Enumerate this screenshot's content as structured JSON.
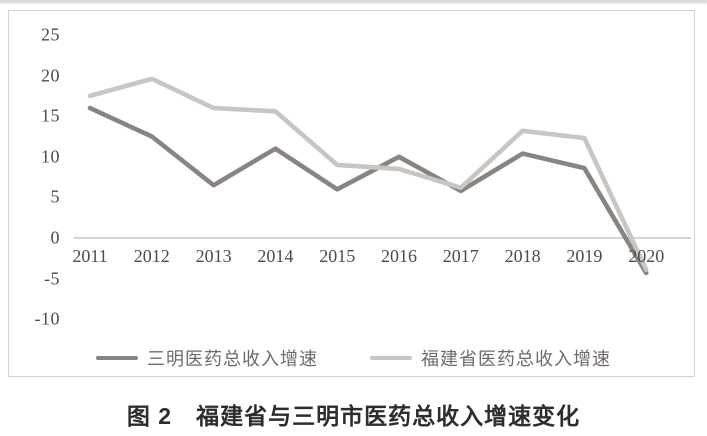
{
  "figure": {
    "caption": "图 2　福建省与三明市医药总收入增速变化"
  },
  "colors": {
    "sanming_line": "#8a8481",
    "fujian_line": "#c9c5c2",
    "axis_line": "#c9c5c2",
    "tick_text": "#4e4b49",
    "frame_border": "#d7d2ce"
  },
  "chart_data": {
    "type": "line",
    "x": [
      2011,
      2012,
      2013,
      2014,
      2015,
      2016,
      2017,
      2018,
      2019,
      2020
    ],
    "series": [
      {
        "name": "三明医药总收入增速",
        "color": "#8a8481",
        "values": [
          16,
          12.5,
          6.5,
          11,
          6,
          10,
          5.8,
          10.4,
          8.6,
          -4.3
        ]
      },
      {
        "name": "福建省医药总收入增速",
        "color": "#c9c5c2",
        "values": [
          17.5,
          19.6,
          16,
          15.6,
          9,
          8.5,
          6.2,
          13.2,
          12.3,
          -3.9
        ]
      }
    ],
    "title": "图 2　福建省与三明市医药总收入增速变化",
    "xlabel": "",
    "ylabel": "",
    "ylim": [
      -10,
      25
    ],
    "yticks": [
      25,
      20,
      15,
      10,
      5,
      0,
      -5,
      -10
    ],
    "grid": false,
    "legend_position": "bottom",
    "zero_axis_line": true
  }
}
